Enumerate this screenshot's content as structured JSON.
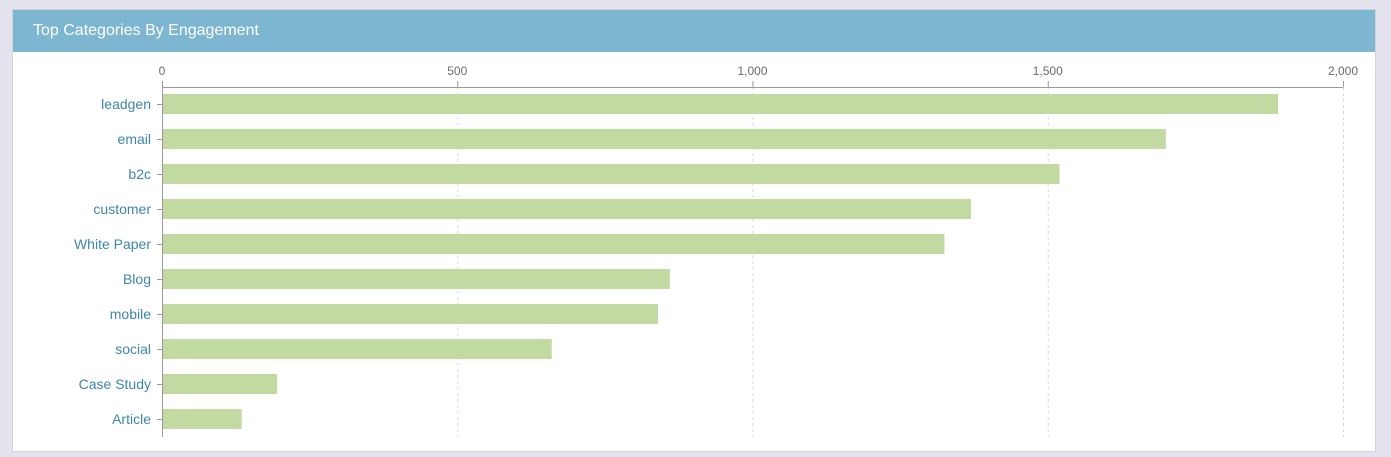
{
  "panel": {
    "title": "Top Categories By Engagement"
  },
  "colors": {
    "header": "#7db6d1",
    "bar": "#c2daa2",
    "category_label": "#3f86a8",
    "tick_label": "#6b6b6b",
    "axis": "#9a9a9a",
    "grid": "#d8d8d8"
  },
  "chart_data": {
    "type": "bar",
    "orientation": "horizontal",
    "title": "Top Categories By Engagement",
    "xlabel": "",
    "ylabel": "",
    "xlim": [
      0,
      2000
    ],
    "x_ticks": [
      0,
      500,
      1000,
      1500,
      2000
    ],
    "x_tick_labels": [
      "0",
      "500",
      "1,000",
      "1,500",
      "2,000"
    ],
    "x_axis_position": "top",
    "grid": "vertical dashed",
    "legend": "none",
    "categories": [
      "leadgen",
      "email",
      "b2c",
      "customer",
      "White Paper",
      "Blog",
      "mobile",
      "social",
      "Case Study",
      "Article"
    ],
    "values": [
      1890,
      1700,
      1520,
      1370,
      1325,
      860,
      840,
      660,
      195,
      135
    ]
  }
}
